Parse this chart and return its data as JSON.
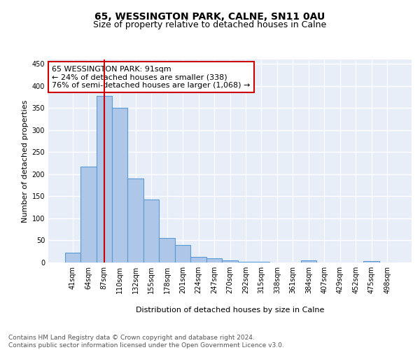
{
  "title1": "65, WESSINGTON PARK, CALNE, SN11 0AU",
  "title2": "Size of property relative to detached houses in Calne",
  "xlabel": "Distribution of detached houses by size in Calne",
  "ylabel": "Number of detached properties",
  "categories": [
    "41sqm",
    "64sqm",
    "87sqm",
    "110sqm",
    "132sqm",
    "155sqm",
    "178sqm",
    "201sqm",
    "224sqm",
    "247sqm",
    "270sqm",
    "292sqm",
    "315sqm",
    "338sqm",
    "361sqm",
    "384sqm",
    "407sqm",
    "429sqm",
    "452sqm",
    "475sqm",
    "498sqm"
  ],
  "values": [
    23,
    218,
    378,
    350,
    190,
    143,
    55,
    40,
    13,
    9,
    5,
    2,
    1,
    0,
    0,
    4,
    0,
    0,
    0,
    3,
    0
  ],
  "bar_color": "#aec6e8",
  "bar_edge_color": "#5b9bd5",
  "vline_x": 2.0,
  "vline_color": "#cc0000",
  "annotation_text": "65 WESSINGTON PARK: 91sqm\n← 24% of detached houses are smaller (338)\n76% of semi-detached houses are larger (1,068) →",
  "annotation_box_color": "#ffffff",
  "annotation_box_edge": "#cc0000",
  "ylim": [
    0,
    460
  ],
  "yticks": [
    0,
    50,
    100,
    150,
    200,
    250,
    300,
    350,
    400,
    450
  ],
  "footer_text": "Contains HM Land Registry data © Crown copyright and database right 2024.\nContains public sector information licensed under the Open Government Licence v3.0.",
  "background_color": "#e8eef8",
  "grid_color": "#ffffff",
  "title1_fontsize": 10,
  "title2_fontsize": 9,
  "axis_label_fontsize": 8,
  "tick_fontsize": 7,
  "annotation_fontsize": 8,
  "footer_fontsize": 6.5
}
